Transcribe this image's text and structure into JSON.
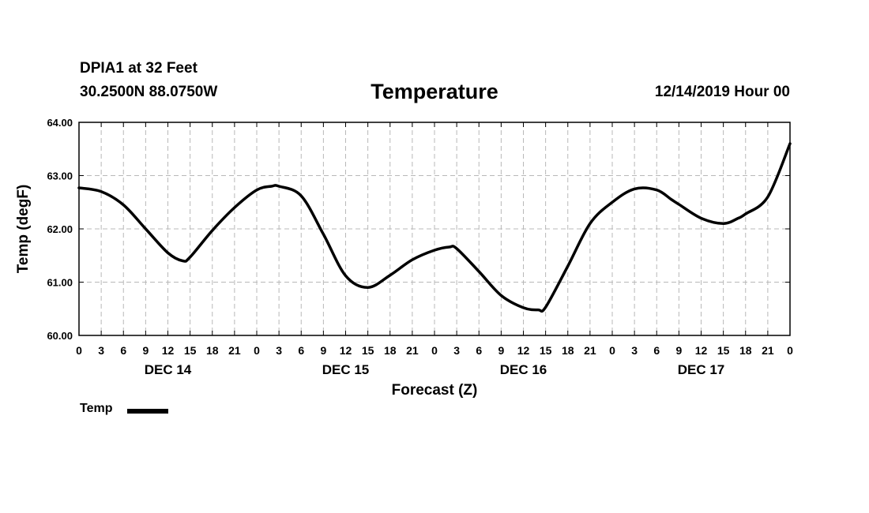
{
  "header": {
    "station": "DPIA1 at 32 Feet",
    "coords": "30.2500N 88.0750W",
    "title": "Temperature",
    "run_time": "12/14/2019 Hour 00"
  },
  "chart_data": {
    "type": "line",
    "title": "Temperature",
    "xlabel": "Forecast (Z)",
    "ylabel": "Temp (degF)",
    "ylim": [
      60,
      64
    ],
    "yticks": [
      "60.00",
      "61.00",
      "62.00",
      "63.00",
      "64.00"
    ],
    "xlim_hours": [
      0,
      96
    ],
    "xtick_labels": [
      "0",
      "3",
      "6",
      "9",
      "12",
      "15",
      "18",
      "21",
      "0",
      "3",
      "6",
      "9",
      "12",
      "15",
      "18",
      "21",
      "0",
      "3",
      "6",
      "9",
      "12",
      "15",
      "18",
      "21",
      "0",
      "3",
      "6",
      "9",
      "12",
      "15",
      "18",
      "21",
      "0"
    ],
    "day_labels": [
      "DEC 14",
      "DEC 15",
      "DEC 16",
      "DEC 17"
    ],
    "grid": true,
    "legend_position": "bottom-left",
    "series": [
      {
        "name": "Temp",
        "color": "#000000",
        "x": [
          0,
          3,
          6,
          9,
          12,
          14,
          15,
          18,
          21,
          24,
          26,
          27,
          30,
          33,
          36,
          39,
          42,
          45,
          48,
          50,
          51,
          54,
          57,
          60,
          62,
          63,
          66,
          69,
          72,
          75,
          78,
          80,
          81,
          84,
          87,
          89,
          90,
          93,
          96
        ],
        "values": [
          62.77,
          62.7,
          62.45,
          62.0,
          61.55,
          61.4,
          61.47,
          61.97,
          62.4,
          62.73,
          62.8,
          62.8,
          62.62,
          61.9,
          61.12,
          60.9,
          61.13,
          61.42,
          61.6,
          61.66,
          61.63,
          61.2,
          60.75,
          60.52,
          60.48,
          60.53,
          61.3,
          62.1,
          62.5,
          62.75,
          62.73,
          62.55,
          62.46,
          62.2,
          62.1,
          62.2,
          62.28,
          62.6,
          63.6
        ]
      }
    ]
  }
}
